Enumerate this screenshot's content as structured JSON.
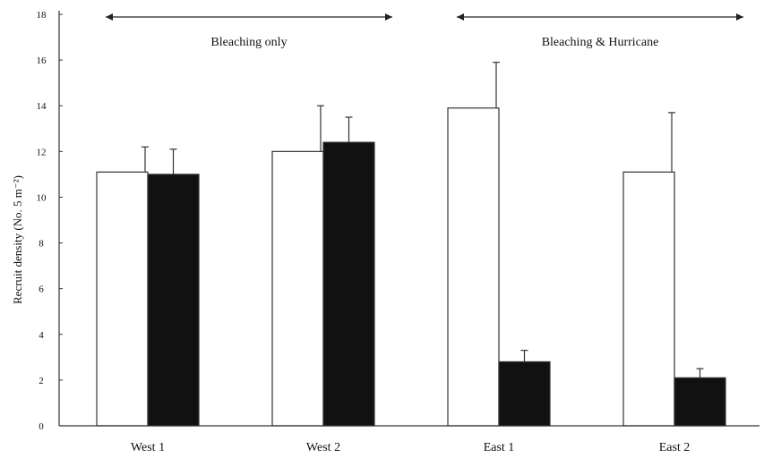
{
  "chart_data": {
    "type": "bar",
    "title": "",
    "xlabel": "",
    "ylabel": "Recruit density (No. 5 m⁻²)",
    "ylim": [
      0,
      18
    ],
    "yticks": [
      "0",
      "2",
      "4",
      "6",
      "8",
      "10",
      "12",
      "14",
      "16",
      "18"
    ],
    "grid": false,
    "categories": [
      "West 1",
      "West 2",
      "East 1",
      "East 2"
    ],
    "series": [
      {
        "color": "#ffffff",
        "values": [
          11.1,
          12.0,
          13.9,
          11.1
        ],
        "errors": [
          1.1,
          2.0,
          2.0,
          2.6
        ]
      },
      {
        "color": "#111111",
        "values": [
          11.0,
          12.4,
          2.8,
          2.1
        ],
        "errors": [
          1.1,
          1.1,
          0.5,
          0.4
        ]
      }
    ],
    "annotations": [
      {
        "text": "Bleaching only",
        "from_category": 0,
        "to_category": 1
      },
      {
        "text": "Bleaching & Hurricane",
        "from_category": 2,
        "to_category": 3
      }
    ]
  }
}
